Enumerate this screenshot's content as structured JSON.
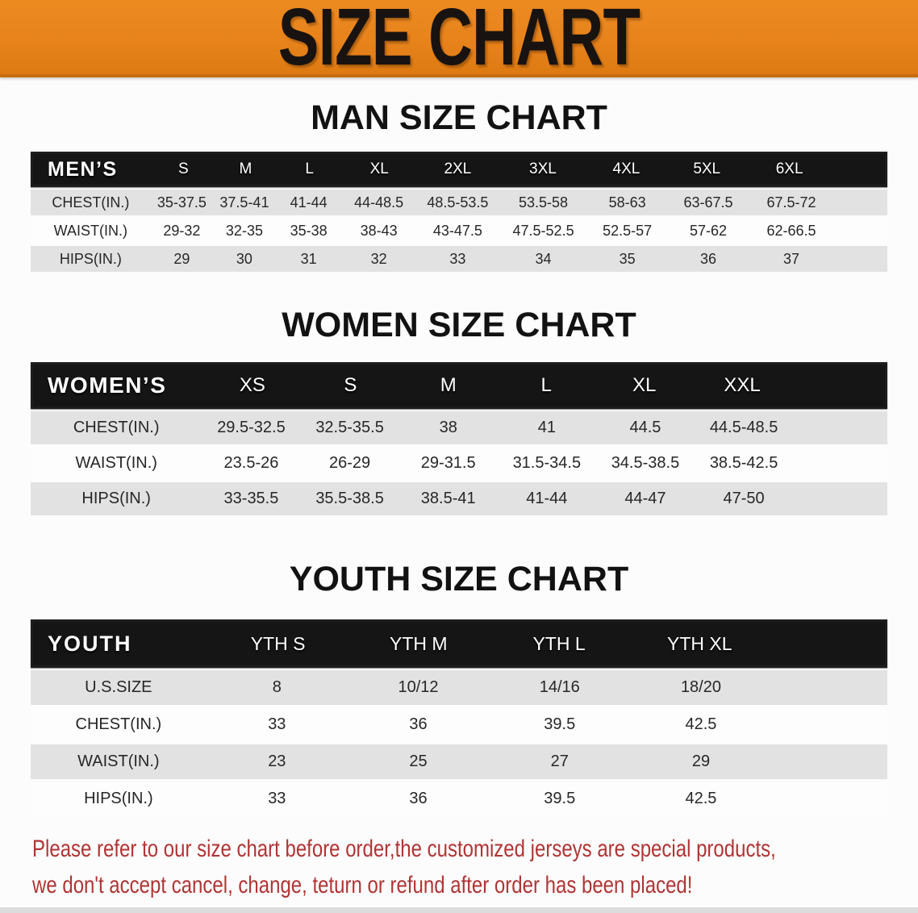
{
  "banner": {
    "title": "SIZE CHART",
    "background_color": "#E8831C",
    "text_color": "#181310"
  },
  "chart_data": [
    {
      "type": "table",
      "title": "MAN SIZE CHART",
      "corner_label": "MEN’S",
      "unit": "inches",
      "columns": [
        "S",
        "M",
        "L",
        "XL",
        "2XL",
        "3XL",
        "4XL",
        "5XL",
        "6XL"
      ],
      "rows": [
        {
          "label": "CHEST(IN.)",
          "values": [
            "35-37.5",
            "37.5-41",
            "41-44",
            "44-48.5",
            "48.5-53.5",
            "53.5-58",
            "58-63",
            "63-67.5",
            "67.5-72"
          ]
        },
        {
          "label": "WAIST(IN.)",
          "values": [
            "29-32",
            "32-35",
            "35-38",
            "38-43",
            "43-47.5",
            "47.5-52.5",
            "52.5-57",
            "57-62",
            "62-66.5"
          ]
        },
        {
          "label": "HIPS(IN.)",
          "values": [
            "29",
            "30",
            "31",
            "32",
            "33",
            "34",
            "35",
            "36",
            "37"
          ]
        }
      ]
    },
    {
      "type": "table",
      "title": "WOMEN SIZE CHART",
      "corner_label": "WOMEN’S",
      "unit": "inches",
      "columns": [
        "XS",
        "S",
        "M",
        "L",
        "XL",
        "XXL"
      ],
      "rows": [
        {
          "label": "CHEST(IN.)",
          "values": [
            "29.5-32.5",
            "32.5-35.5",
            "38",
            "41",
            "44.5",
            "44.5-48.5"
          ]
        },
        {
          "label": "WAIST(IN.)",
          "values": [
            "23.5-26",
            "26-29",
            "29-31.5",
            "31.5-34.5",
            "34.5-38.5",
            "38.5-42.5"
          ]
        },
        {
          "label": "HIPS(IN.)",
          "values": [
            "33-35.5",
            "35.5-38.5",
            "38.5-41",
            "41-44",
            "44-47",
            "47-50"
          ]
        }
      ]
    },
    {
      "type": "table",
      "title": "YOUTH SIZE CHART",
      "corner_label": "YOUTH",
      "unit": "inches",
      "columns": [
        "YTH S",
        "YTH M",
        "YTH L",
        "YTH XL"
      ],
      "rows": [
        {
          "label": "U.S.SIZE",
          "values": [
            "8",
            "10/12",
            "14/16",
            "18/20"
          ]
        },
        {
          "label": "CHEST(IN.)",
          "values": [
            "33",
            "36",
            "39.5",
            "42.5"
          ]
        },
        {
          "label": "WAIST(IN.)",
          "values": [
            "23",
            "25",
            "27",
            "29"
          ]
        },
        {
          "label": "HIPS(IN.)",
          "values": [
            "33",
            "36",
            "39.5",
            "42.5"
          ]
        }
      ]
    }
  ],
  "disclaimer": {
    "line1": "Please refer to our size chart before order,the customized jerseys are special products,",
    "line2": "we don't accept cancel, change, teturn or refund after order has been placed!",
    "color": "#B13434"
  }
}
